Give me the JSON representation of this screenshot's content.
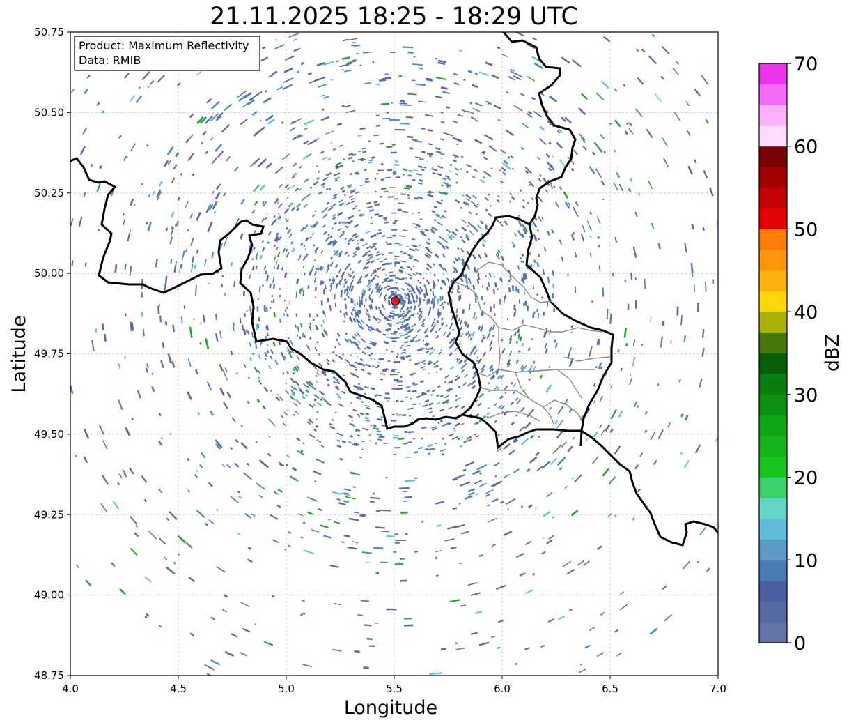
{
  "title": "21.11.2025 18:25 - 18:29 UTC",
  "info_box": {
    "line1": "Product: Maximum Reflectivity",
    "line2": "Data: RMIB"
  },
  "axes": {
    "xlabel": "Longitude",
    "ylabel": "Latitude",
    "xlim": [
      4.0,
      7.0
    ],
    "ylim": [
      48.75,
      50.75
    ],
    "xticks": [
      "4.0",
      "4.5",
      "5.0",
      "5.5",
      "6.0",
      "6.5",
      "7.0"
    ],
    "yticks": [
      "50.75",
      "50.50",
      "50.25",
      "50.00",
      "49.75",
      "49.50",
      "49.25",
      "49.00",
      "48.75"
    ],
    "grid": true
  },
  "colorbar": {
    "label": "dBZ",
    "range": [
      0,
      70
    ],
    "ticks": [
      "0",
      "10",
      "20",
      "30",
      "40",
      "50",
      "60",
      "70"
    ],
    "colors": [
      "#6473a6",
      "#566aa1",
      "#4a5f9f",
      "#4a7bb2",
      "#5a9cc5",
      "#62bcd9",
      "#62d5c6",
      "#3bd26b",
      "#16c61e",
      "#14b51c",
      "#10a617",
      "#0e9113",
      "#0c7e10",
      "#075f0b",
      "#47780d",
      "#aab10a",
      "#fcd80a",
      "#fab10a",
      "#fe960a",
      "#fc7c0a",
      "#e40202",
      "#c30202",
      "#a30202",
      "#7a0202",
      "#fcdcfc",
      "#fbb0fb",
      "#f56af5",
      "#ed34ed"
    ]
  },
  "radar_site": {
    "lon": 5.505,
    "lat": 49.914,
    "color": "#e8141c"
  },
  "echo_colors": {
    "weak": "#5a6da3",
    "light": "#4f8ac0",
    "cyan": "#5fc6d4",
    "green": "#22a62a"
  }
}
